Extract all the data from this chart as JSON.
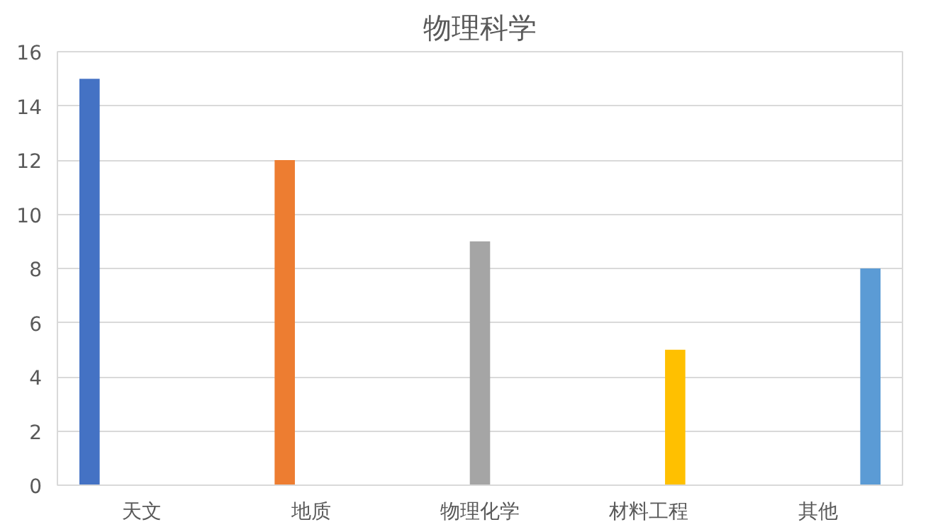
{
  "chart_data": {
    "type": "bar",
    "title": "物理科学",
    "categories": [
      "天文",
      "地质",
      "物理化学",
      "材料工程",
      "其他"
    ],
    "series": [
      {
        "color": "#4472c4",
        "values": [
          15,
          null,
          null,
          null,
          null
        ]
      },
      {
        "color": "#ed7d31",
        "values": [
          null,
          12,
          null,
          null,
          null
        ]
      },
      {
        "color": "#a5a5a5",
        "values": [
          null,
          null,
          9,
          null,
          null
        ]
      },
      {
        "color": "#ffc000",
        "values": [
          null,
          null,
          null,
          5,
          null
        ]
      },
      {
        "color": "#5b9bd5",
        "values": [
          null,
          null,
          null,
          null,
          8
        ]
      }
    ],
    "ylim": [
      0,
      16
    ],
    "yticks": [
      0,
      2,
      4,
      6,
      8,
      10,
      12,
      14,
      16
    ],
    "grid": "y"
  }
}
